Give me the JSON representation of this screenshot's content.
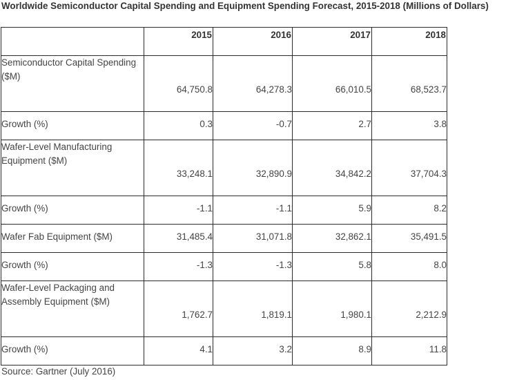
{
  "title": "Worldwide Semiconductor Capital Spending and Equipment Spending Forecast, 2015-2018 (Millions of Dollars)",
  "columns": [
    "",
    "2015",
    "2016",
    "2017",
    "2018"
  ],
  "rows": [
    {
      "label": "Semiconductor Capital Spending ($M)",
      "values": [
        "64,750.8",
        "64,278.3",
        "66,010.5",
        "68,523.7"
      ]
    },
    {
      "label": "Growth (%)",
      "values": [
        "0.3",
        "-0.7",
        "2.7",
        "3.8"
      ]
    },
    {
      "label": "Wafer-Level Manufacturing Equipment ($M)",
      "values": [
        "33,248.1",
        "32,890.9",
        "34,842.2",
        "37,704.3"
      ]
    },
    {
      "label": "Growth (%)",
      "values": [
        "-1.1",
        "-1.1",
        "5.9",
        "8.2"
      ]
    },
    {
      "label": "Wafer Fab Equipment ($M)",
      "values": [
        "31,485.4",
        "31,071.8",
        "32,862.1",
        "35,491.5"
      ]
    },
    {
      "label": "Growth (%)",
      "values": [
        "-1.3",
        "-1.3",
        "5.8",
        "8.0"
      ]
    },
    {
      "label": "Wafer-Level Packaging and Assembly Equipment ($M)",
      "values": [
        "1,762.7",
        "1,819.1",
        "1,980.1",
        "2,212.9"
      ]
    },
    {
      "label": "Growth (%)",
      "values": [
        "4.1",
        "3.2",
        "8.9",
        "11.8"
      ]
    }
  ],
  "source": "Source: Gartner (July 2016)"
}
